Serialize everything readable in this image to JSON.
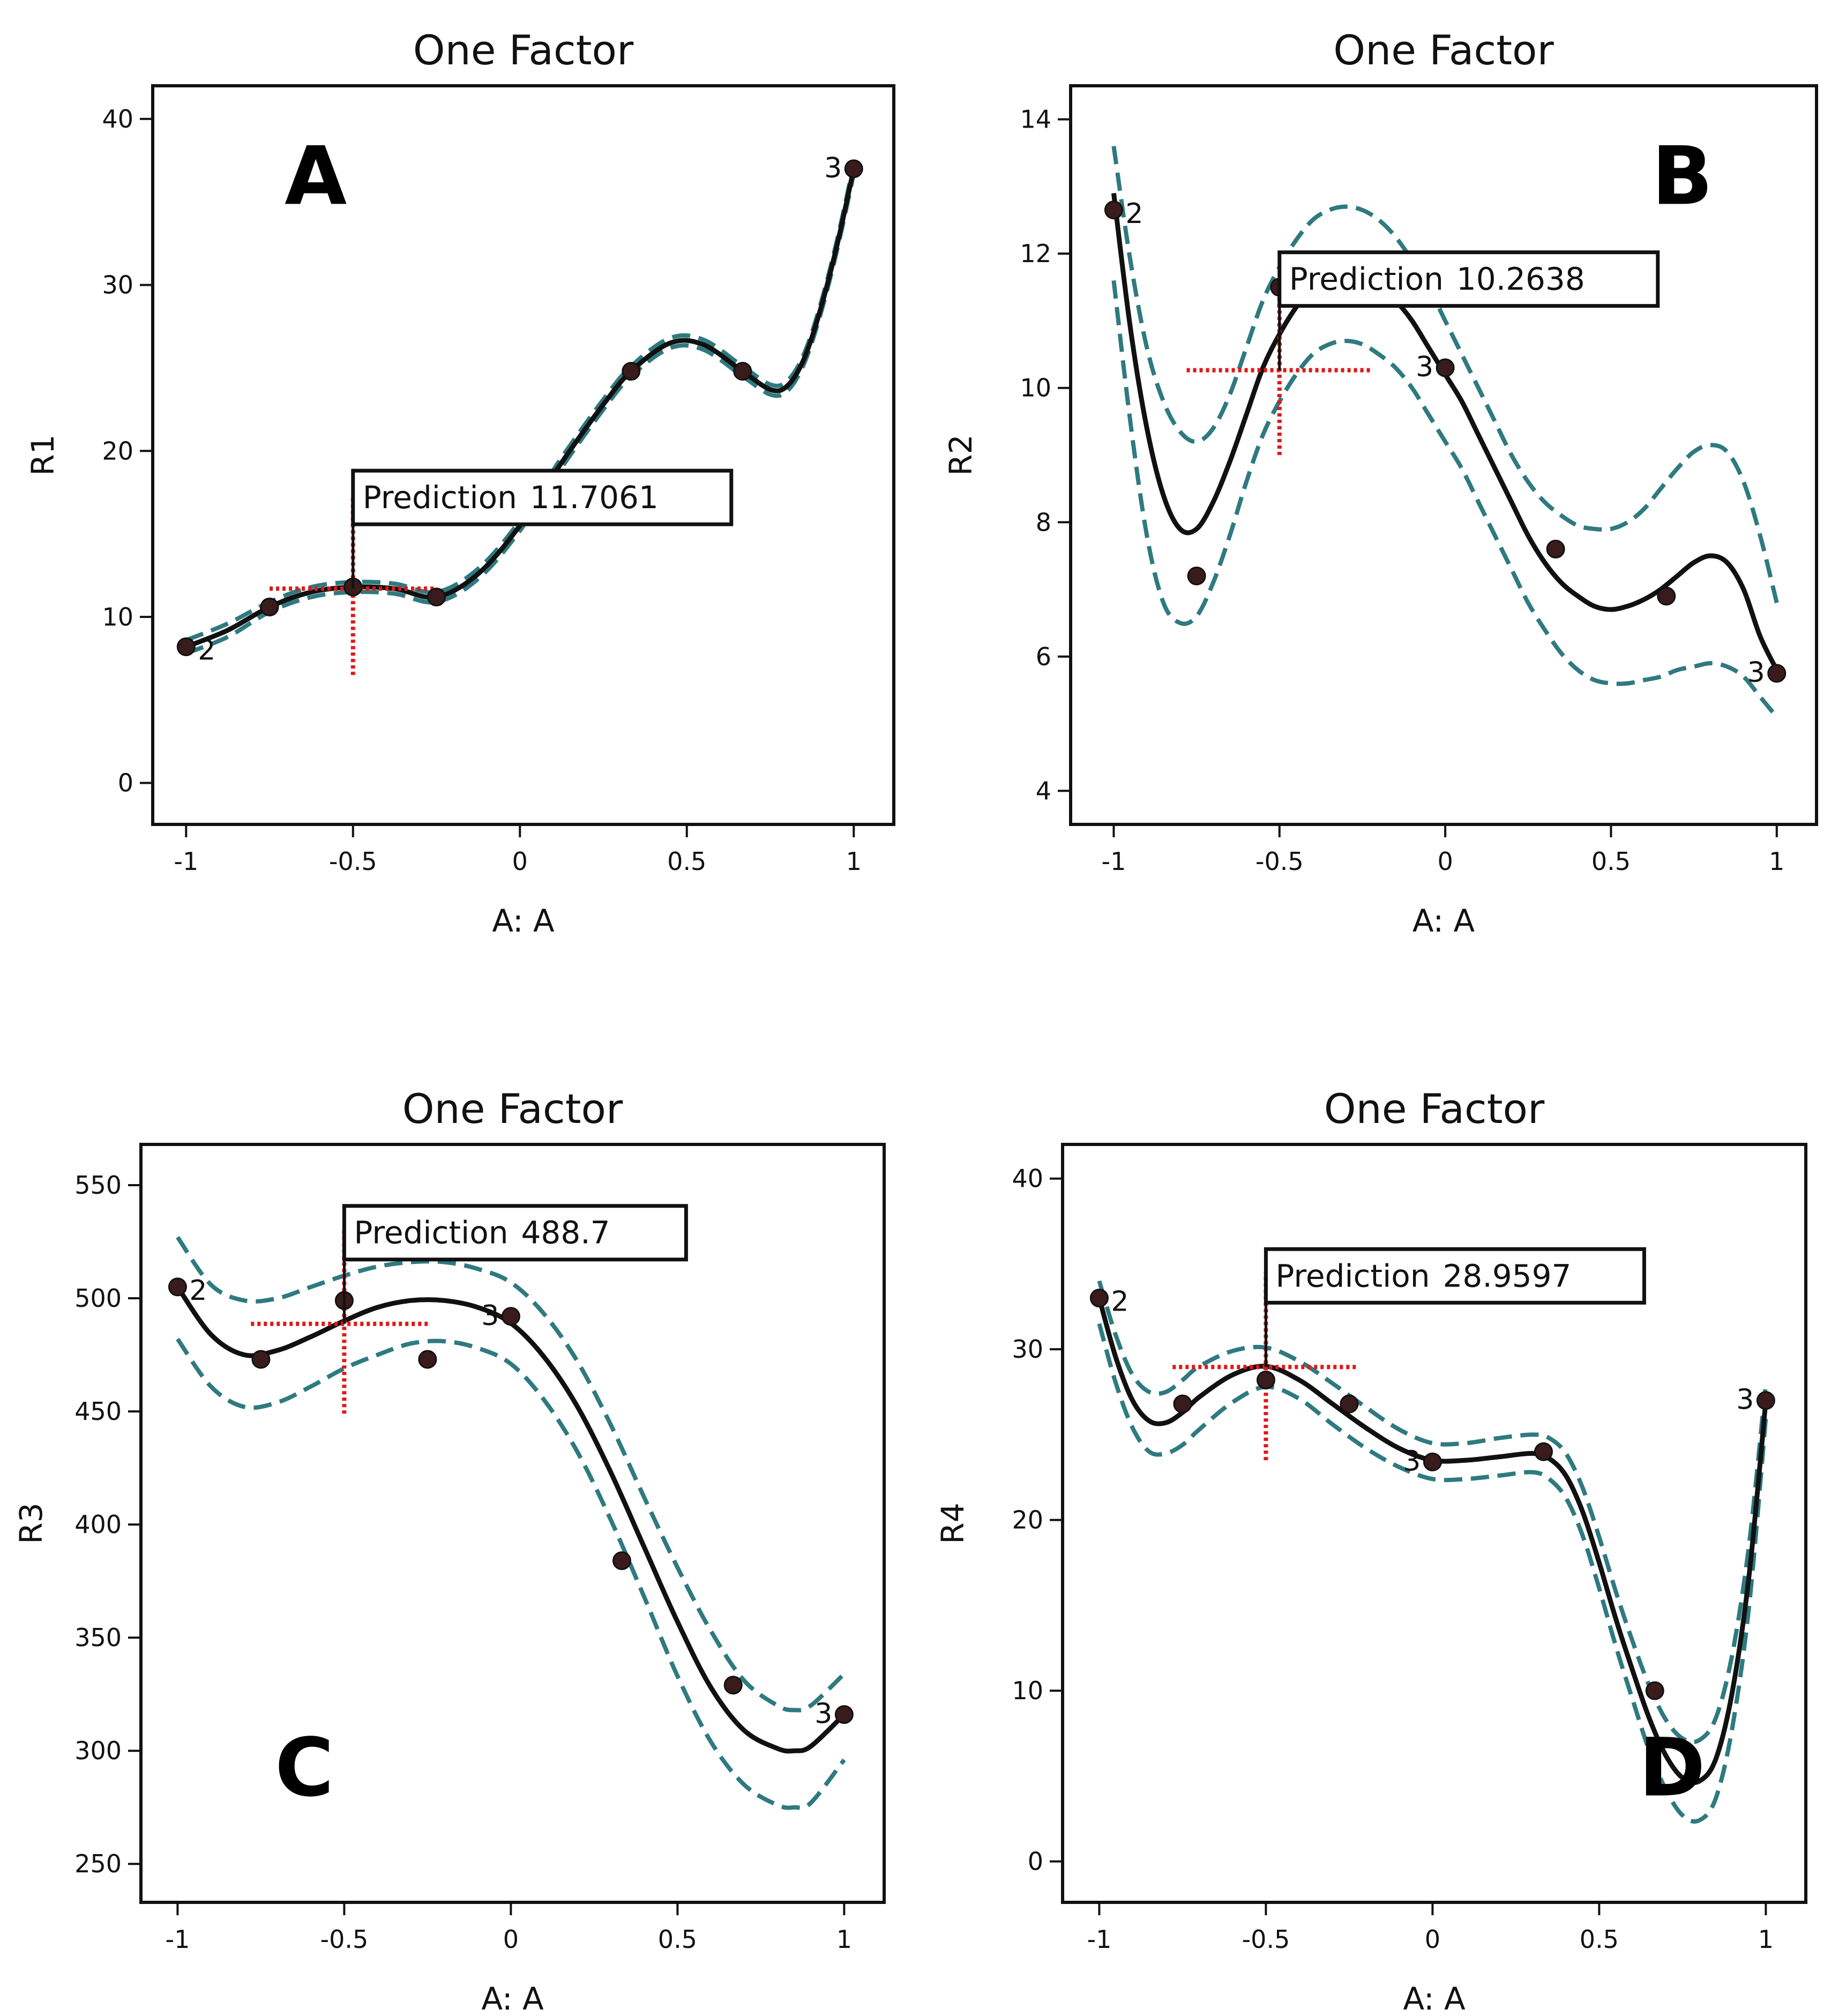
{
  "chart_data": [
    {
      "panel_letter": "A",
      "type": "line",
      "title": "One Factor",
      "xlabel": "A: A",
      "ylabel": "R1",
      "xlim": [
        -1.1,
        1.12
      ],
      "ylim": [
        -2.5,
        42
      ],
      "xticks": [
        -1,
        -0.5,
        0,
        0.5,
        1
      ],
      "xtick_labels": [
        "-1",
        "-0.5",
        "0",
        "0.5",
        "1"
      ],
      "yticks": [
        0,
        10,
        20,
        30,
        40
      ],
      "ytick_labels": [
        "0",
        "10",
        "20",
        "30",
        "40"
      ],
      "letter_position": "upper-left",
      "fit": {
        "x": [
          -1,
          -0.875,
          -0.75,
          -0.625,
          -0.5,
          -0.375,
          -0.25,
          -0.125,
          0,
          0.125,
          0.25,
          0.333,
          0.45,
          0.55,
          0.667,
          0.75,
          0.8,
          0.85,
          0.9,
          0.95,
          1
        ],
        "y": [
          8.2,
          9.2,
          10.6,
          11.5,
          11.8,
          11.7,
          11.2,
          12.6,
          15.5,
          19.3,
          22.8,
          24.8,
          26.5,
          26.4,
          24.8,
          23.7,
          23.9,
          25.5,
          28.5,
          32.4,
          37
        ]
      },
      "band": {
        "upper": [
          8.6,
          9.6,
          10.9,
          11.8,
          12.1,
          12.0,
          11.5,
          12.9,
          15.8,
          19.6,
          23.1,
          25.1,
          26.8,
          26.7,
          25.1,
          24.0,
          24.2,
          25.8,
          28.8,
          32.7,
          37.3
        ],
        "lower": [
          7.8,
          8.8,
          10.3,
          11.2,
          11.5,
          11.4,
          10.9,
          12.3,
          15.2,
          19.0,
          22.5,
          24.5,
          26.2,
          26.1,
          24.5,
          23.4,
          23.6,
          25.2,
          28.2,
          32.1,
          36.7
        ]
      },
      "points": [
        {
          "x": -1,
          "y": 8.2
        },
        {
          "x": -0.75,
          "y": 10.6
        },
        {
          "x": -0.5,
          "y": 11.8
        },
        {
          "x": -0.25,
          "y": 11.2
        },
        {
          "x": 0.333,
          "y": 24.8
        },
        {
          "x": 0.667,
          "y": 24.8
        },
        {
          "x": 1,
          "y": 37
        }
      ],
      "point_labels": [
        {
          "x": -1,
          "y": 8.2,
          "text": "2",
          "side": "right"
        },
        {
          "x": 1,
          "y": 37,
          "text": "3",
          "side": "left"
        }
      ],
      "prediction": {
        "x": -0.5,
        "y": 11.7061,
        "label": "Prediction",
        "value": "11.7061"
      },
      "crosshair": {
        "x_from": -0.75,
        "x_to": -0.25,
        "y_from": 6.5,
        "y_to": 17.3
      }
    },
    {
      "panel_letter": "B",
      "type": "line",
      "title": "One Factor",
      "xlabel": "A: A",
      "ylabel": "R2",
      "xlim": [
        -1.13,
        1.12
      ],
      "ylim": [
        3.5,
        14.5
      ],
      "xticks": [
        -1,
        -0.5,
        0,
        0.5,
        1
      ],
      "xtick_labels": [
        "-1",
        "-0.5",
        "0",
        "0.5",
        "1"
      ],
      "yticks": [
        4,
        6,
        8,
        10,
        12,
        14
      ],
      "ytick_labels": [
        "4",
        "6",
        "8",
        "10",
        "12",
        "14"
      ],
      "letter_position": "upper-right",
      "fit": {
        "x": [
          -1,
          -0.95,
          -0.9,
          -0.85,
          -0.8,
          -0.75,
          -0.7,
          -0.65,
          -0.6,
          -0.55,
          -0.5,
          -0.45,
          -0.4,
          -0.35,
          -0.3,
          -0.25,
          -0.2,
          -0.15,
          -0.1,
          -0.05,
          0,
          0.05,
          0.1,
          0.15,
          0.2,
          0.25,
          0.3,
          0.35,
          0.4,
          0.45,
          0.5,
          0.55,
          0.6,
          0.65,
          0.7,
          0.75,
          0.8,
          0.85,
          0.9,
          0.95,
          1
        ],
        "y": [
          12.9,
          10.9,
          9.4,
          8.4,
          7.9,
          7.9,
          8.3,
          8.9,
          9.6,
          10.3,
          10.8,
          11.2,
          11.5,
          11.6,
          11.7,
          11.7,
          11.5,
          11.3,
          11.0,
          10.6,
          10.2,
          9.8,
          9.3,
          8.8,
          8.3,
          7.8,
          7.4,
          7.1,
          6.9,
          6.75,
          6.7,
          6.75,
          6.85,
          7.0,
          7.2,
          7.4,
          7.5,
          7.4,
          7.0,
          6.3,
          5.8
        ]
      },
      "band": {
        "upper": [
          13.6,
          11.9,
          10.6,
          9.8,
          9.35,
          9.2,
          9.4,
          9.9,
          10.6,
          11.3,
          11.8,
          12.2,
          12.5,
          12.65,
          12.7,
          12.65,
          12.5,
          12.25,
          11.9,
          11.5,
          11.0,
          10.5,
          10.0,
          9.5,
          9.0,
          8.6,
          8.3,
          8.1,
          7.95,
          7.9,
          7.9,
          8.0,
          8.2,
          8.5,
          8.8,
          9.05,
          9.15,
          9.05,
          8.6,
          7.8,
          6.8
        ],
        "lower": [
          11.6,
          9.5,
          7.8,
          6.8,
          6.5,
          6.6,
          7.1,
          7.8,
          8.6,
          9.3,
          9.8,
          10.2,
          10.5,
          10.65,
          10.7,
          10.65,
          10.5,
          10.3,
          10.0,
          9.6,
          9.2,
          8.8,
          8.3,
          7.8,
          7.3,
          6.8,
          6.4,
          6.05,
          5.8,
          5.65,
          5.6,
          5.6,
          5.65,
          5.7,
          5.8,
          5.85,
          5.9,
          5.85,
          5.7,
          5.4,
          5.1
        ]
      },
      "points": [
        {
          "x": -1,
          "y": 12.65
        },
        {
          "x": -0.75,
          "y": 7.2
        },
        {
          "x": -0.5,
          "y": 11.5
        },
        {
          "x": 0,
          "y": 10.3
        },
        {
          "x": 0.333,
          "y": 7.6
        },
        {
          "x": 0.667,
          "y": 6.9
        },
        {
          "x": 1,
          "y": 5.75
        }
      ],
      "point_labels": [
        {
          "x": -1,
          "y": 12.65,
          "text": "2",
          "side": "right"
        },
        {
          "x": 0,
          "y": 10.3,
          "text": "3",
          "side": "left"
        },
        {
          "x": 1,
          "y": 5.75,
          "text": "3",
          "side": "left"
        }
      ],
      "prediction": {
        "x": -0.5,
        "y": 10.2638,
        "label": "Prediction",
        "value": "10.2638"
      },
      "crosshair": {
        "x_from": -0.78,
        "x_to": -0.22,
        "y_from": 9.0,
        "y_to": 11.5
      }
    },
    {
      "panel_letter": "C",
      "type": "line",
      "title": "One Factor",
      "xlabel": "A: A",
      "ylabel": "R3",
      "xlim": [
        -1.11,
        1.12
      ],
      "ylim": [
        233,
        568
      ],
      "xticks": [
        -1,
        -0.5,
        0,
        0.5,
        1
      ],
      "xtick_labels": [
        "-1",
        "-0.5",
        "0",
        "0.5",
        "1"
      ],
      "yticks": [
        250,
        300,
        350,
        400,
        450,
        500,
        550
      ],
      "ytick_labels": [
        "250",
        "300",
        "350",
        "400",
        "450",
        "500",
        "550"
      ],
      "letter_position": "lower-left",
      "fit": {
        "x": [
          -1,
          -0.9,
          -0.8,
          -0.7,
          -0.6,
          -0.5,
          -0.4,
          -0.3,
          -0.2,
          -0.1,
          0,
          0.1,
          0.2,
          0.3,
          0.4,
          0.5,
          0.6,
          0.7,
          0.8,
          0.85,
          0.9,
          1
        ],
        "y": [
          505,
          484,
          475,
          477,
          483,
          490,
          496,
          499,
          499,
          496,
          489,
          474,
          452,
          423,
          390,
          357,
          328,
          309,
          301,
          300,
          302,
          316
        ]
      },
      "band": {
        "upper": [
          527,
          506,
          499,
          500,
          505,
          510,
          514,
          516,
          516,
          513,
          507,
          493,
          472,
          444,
          412,
          381,
          353,
          331,
          320,
          318,
          320,
          334
        ],
        "lower": [
          482,
          461,
          452,
          454,
          461,
          469,
          475,
          480,
          481,
          478,
          471,
          455,
          432,
          402,
          368,
          333,
          304,
          285,
          276,
          275,
          277,
          296
        ]
      },
      "points": [
        {
          "x": -1,
          "y": 505
        },
        {
          "x": -0.75,
          "y": 473
        },
        {
          "x": -0.5,
          "y": 499
        },
        {
          "x": -0.25,
          "y": 473
        },
        {
          "x": 0,
          "y": 492
        },
        {
          "x": 0.333,
          "y": 384
        },
        {
          "x": 0.667,
          "y": 329
        },
        {
          "x": 1,
          "y": 316
        }
      ],
      "point_labels": [
        {
          "x": -1,
          "y": 505,
          "text": "2",
          "side": "right"
        },
        {
          "x": 0,
          "y": 492,
          "text": "3",
          "side": "left"
        },
        {
          "x": 1,
          "y": 316,
          "text": "3",
          "side": "left"
        }
      ],
      "prediction": {
        "x": -0.5,
        "y": 488.7,
        "label": "Prediction",
        "value": "488.7"
      },
      "crosshair": {
        "x_from": -0.78,
        "x_to": -0.24,
        "y_from": 449,
        "y_to": 530
      }
    },
    {
      "panel_letter": "D",
      "type": "line",
      "title": "One Factor",
      "xlabel": "A: A",
      "ylabel": "R4",
      "xlim": [
        -1.11,
        1.12
      ],
      "ylim": [
        -2.4,
        42
      ],
      "xticks": [
        -1,
        -0.5,
        0,
        0.5,
        1
      ],
      "xtick_labels": [
        "-1",
        "-0.5",
        "0",
        "0.5",
        "1"
      ],
      "yticks": [
        0,
        10,
        20,
        30,
        40
      ],
      "ytick_labels": [
        "0",
        "10",
        "20",
        "30",
        "40"
      ],
      "letter_position": "lower-right",
      "fit": {
        "x": [
          -1,
          -0.95,
          -0.9,
          -0.85,
          -0.8,
          -0.75,
          -0.7,
          -0.6,
          -0.5,
          -0.4,
          -0.3,
          -0.2,
          -0.1,
          0,
          0.1,
          0.2,
          0.3,
          0.35,
          0.4,
          0.45,
          0.5,
          0.55,
          0.6,
          0.65,
          0.7,
          0.75,
          0.8,
          0.85,
          0.9,
          0.95,
          1
        ],
        "y": [
          33,
          29.5,
          27,
          25.8,
          25.7,
          26.3,
          27.2,
          28.5,
          29.0,
          28.2,
          26.8,
          25.4,
          24.2,
          23.5,
          23.5,
          23.7,
          23.9,
          23.6,
          22.6,
          20.5,
          17.5,
          14.2,
          11.2,
          8.4,
          6.2,
          4.9,
          4.7,
          6.0,
          10.0,
          16.8,
          27
        ]
      },
      "band": {
        "upper": [
          34,
          30.8,
          28.5,
          27.5,
          27.5,
          28.2,
          29.0,
          29.9,
          30.1,
          29.3,
          28.0,
          26.6,
          25.3,
          24.5,
          24.5,
          24.8,
          25.0,
          24.8,
          23.9,
          21.9,
          19.0,
          15.8,
          12.9,
          10.3,
          8.3,
          7.2,
          7.1,
          8.4,
          12.2,
          18.6,
          28
        ]
      },
      "band_lower": [
        31.5,
        28.0,
        25.4,
        24.0,
        23.9,
        24.4,
        25.3,
        26.9,
        27.8,
        27.1,
        25.6,
        24.2,
        23.1,
        22.4,
        22.4,
        22.6,
        22.8,
        22.4,
        21.3,
        19.1,
        16.0,
        12.6,
        9.5,
        6.5,
        4.2,
        2.7,
        2.4,
        3.7,
        7.9,
        15.0,
        26
      ],
      "points": [
        {
          "x": -1,
          "y": 33
        },
        {
          "x": -0.75,
          "y": 26.8
        },
        {
          "x": -0.5,
          "y": 28.2
        },
        {
          "x": -0.25,
          "y": 26.8
        },
        {
          "x": 0,
          "y": 23.4
        },
        {
          "x": 0.333,
          "y": 24.0
        },
        {
          "x": 0.667,
          "y": 10.0
        },
        {
          "x": 1,
          "y": 27
        }
      ],
      "point_labels": [
        {
          "x": -1,
          "y": 33,
          "text": "2",
          "side": "right"
        },
        {
          "x": 0,
          "y": 23.4,
          "text": "3",
          "side": "left"
        },
        {
          "x": 1,
          "y": 27,
          "text": "3",
          "side": "left"
        }
      ],
      "prediction": {
        "x": -0.5,
        "y": 28.9597,
        "label": "Prediction",
        "value": "28.9597"
      },
      "crosshair": {
        "x_from": -0.78,
        "x_to": -0.23,
        "y_from": 23.5,
        "y_to": 34.5
      }
    }
  ]
}
